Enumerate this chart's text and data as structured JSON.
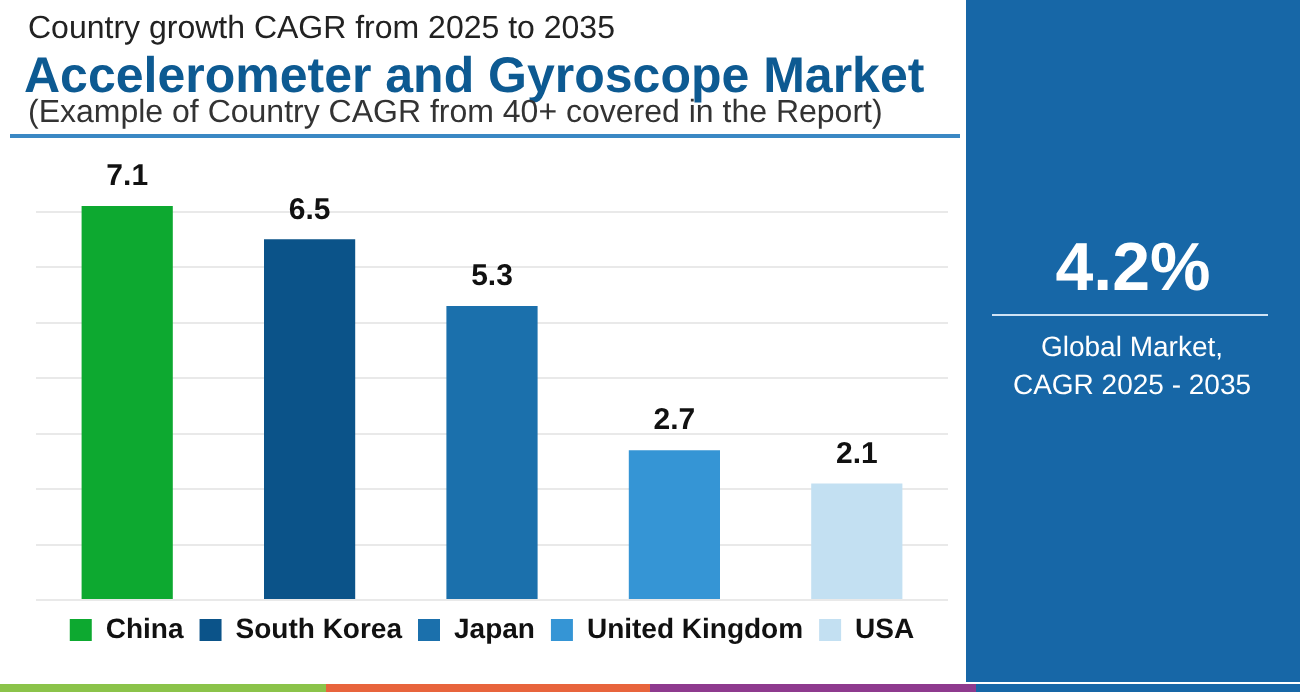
{
  "chart_data": {
    "type": "bar",
    "title": "Accelerometer and Gyroscope Market",
    "subtitle": "Country growth CAGR from 2025 to 2035",
    "annotations": [
      "(Example of Country CAGR from 40+ covered in the Report)",
      "4.2%",
      "Global Market, CAGR 2025 - 2035"
    ],
    "categories": [
      null,
      null,
      null,
      null,
      null
    ],
    "stacked": true,
    "series": [
      {
        "name": "China",
        "color": "#0da930",
        "values": [
          7.1,
          null,
          null,
          null,
          null
        ]
      },
      {
        "name": "South Korea",
        "color": "#0b5389",
        "values": [
          null,
          6.5,
          null,
          null,
          null
        ]
      },
      {
        "name": "Japan",
        "color": "#1b70ac",
        "values": [
          null,
          null,
          5.3,
          null,
          null
        ]
      },
      {
        "name": "United Kingdom",
        "color": "#3595d5",
        "values": [
          null,
          null,
          null,
          2.7,
          null
        ]
      },
      {
        "name": "USA",
        "color": "#c3e0f2",
        "values": [
          null,
          null,
          null,
          null,
          2.1
        ]
      }
    ],
    "ylim": [
      0,
      7.1
    ],
    "yticks": [
      {
        "value": 0,
        "label": null
      },
      {
        "value": 1,
        "label": null
      },
      {
        "value": 2,
        "label": null
      },
      {
        "value": 3,
        "label": null
      },
      {
        "value": 4,
        "label": null
      },
      {
        "value": 5,
        "label": null
      },
      {
        "value": 6,
        "label": null
      },
      {
        "value": 7,
        "label": null
      }
    ],
    "grid": "y",
    "legend": "bottom",
    "tick_labels": false,
    "data_labels": true
  }
}
